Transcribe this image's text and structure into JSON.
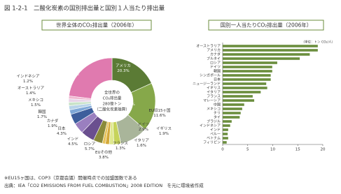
{
  "title": "図 1-2-1　二酸化炭素の国別排出量と国別１人当たり排出量",
  "notes": [
    "※EU15ヶ国は、COP3（京都会議）開催時点での加盟国数である",
    "出典：IEA「CO2 EMISSIONS FROM FUEL COMBUSTION」2008 EDITION　を元に環境省作成"
  ],
  "chart_data": [
    {
      "type": "pie",
      "title": "世界全体のCO₂排出量（2006年）",
      "center_text": [
        "全世界の",
        "CO₂排出量",
        "280億トン",
        "（二酸化炭素換算）"
      ],
      "categories": [
        "アメリカ",
        "中国",
        "EU旧15ヶ国",
        "ドイツ",
        "イギリス",
        "イタリア",
        "フランス",
        "EUその他",
        "ロシア",
        "インド",
        "日本",
        "カナダ",
        "韓国",
        "メキシコ",
        "オーストラリア",
        "インドネシア",
        "その他"
      ],
      "values": [
        20.3,
        20.2,
        11.6,
        2.9,
        1.9,
        1.6,
        1.3,
        3.8,
        5.7,
        4.5,
        4.3,
        1.9,
        1.7,
        1.5,
        1.4,
        1.2,
        25.7
      ],
      "value_labels": [
        "20.3%",
        "20.2%",
        "11.6%",
        "2.9%",
        "1.9%",
        "1.6%",
        "1.3%",
        "3.8%",
        "5.7%",
        "4.5%",
        "4.3%",
        "1.9%",
        "1.7%",
        "1.5%",
        "1.4%",
        "1.2%",
        "25.7%"
      ],
      "colors": [
        "#5b7b35",
        "#86a84a",
        "#a9b59a",
        "#c6d35a",
        "#dfe88f",
        "#d4a93a",
        "#e6c25a",
        "#8a8a3a",
        "#6a4f8f",
        "#9a7fbf",
        "#3d5e9c",
        "#7fa8d8",
        "#b8d3e8",
        "#c9e3c9",
        "#e8d4e8",
        "#f0b8d0",
        "#e07aaf"
      ]
    },
    {
      "type": "hbar",
      "title": "国別一人当たりCO₂排出量（2006年）",
      "unit": "（単位：トン CO₂/人）",
      "categories": [
        "オーストラリア",
        "アメリカ",
        "カナダ",
        "ブルネイ",
        "ロシア",
        "ドイツ",
        "韓国",
        "シンガポール",
        "日本",
        "ニュージーランド",
        "イギリス",
        "イタリア",
        "フランス",
        "マレーシア",
        "中国",
        "メキシコ",
        "チリ",
        "タイ",
        "ブラジル",
        "インドネシア",
        "インド",
        "ペルー",
        "ベトナム",
        "フィリピン"
      ],
      "values": [
        19.0,
        19.0,
        17.4,
        15.4,
        10.9,
        9.9,
        9.9,
        9.6,
        9.6,
        8.7,
        8.9,
        7.6,
        6.0,
        6.3,
        4.3,
        3.9,
        3.6,
        3.4,
        1.8,
        1.5,
        1.1,
        1.0,
        1.1,
        0.8
      ],
      "color": "#6b8e3e",
      "xlim": [
        0,
        20
      ],
      "xticks": [
        0,
        5,
        10,
        15,
        20
      ]
    }
  ]
}
